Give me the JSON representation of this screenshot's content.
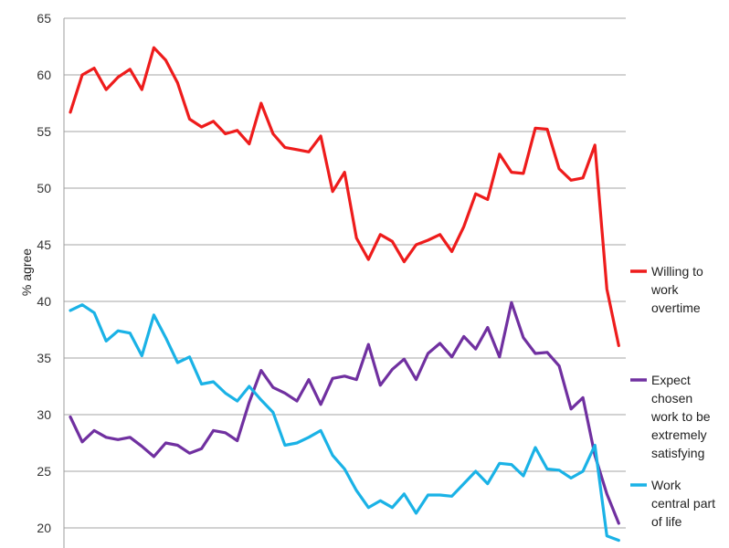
{
  "chart_data": {
    "type": "line",
    "title": "",
    "xlabel": "",
    "ylabel": "% agree",
    "ylim": [
      19,
      65
    ],
    "yticks": [
      20,
      25,
      30,
      35,
      40,
      45,
      50,
      55,
      60,
      65
    ],
    "grid": true,
    "legend_position": "right",
    "series": [
      {
        "name": "Willing to work overtime",
        "legend_lines": [
          "Willing to",
          "work",
          "overtime"
        ],
        "color": "#ee1c1c",
        "values": [
          56.7,
          60.0,
          60.6,
          58.7,
          59.8,
          60.5,
          58.7,
          62.4,
          61.3,
          59.3,
          56.1,
          55.4,
          55.9,
          54.8,
          55.1,
          53.9,
          57.5,
          54.8,
          53.6,
          53.4,
          53.2,
          54.6,
          49.7,
          51.4,
          45.6,
          43.7,
          45.9,
          45.3,
          43.5,
          45.0,
          45.4,
          45.9,
          44.4,
          46.6,
          49.5,
          49.0,
          53.0,
          51.4,
          51.3,
          55.3,
          55.2,
          51.7,
          50.7,
          50.9,
          53.8,
          41.1,
          36.1
        ]
      },
      {
        "name": "Expect chosen work to be extremely satisfying",
        "legend_lines": [
          "Expect",
          "chosen",
          "work to be",
          "extremely",
          "satisfying"
        ],
        "color": "#7030a0",
        "values": [
          29.8,
          27.6,
          28.6,
          28.0,
          27.8,
          28.0,
          27.2,
          26.3,
          27.5,
          27.3,
          26.6,
          27.0,
          28.6,
          28.4,
          27.7,
          31.1,
          33.9,
          32.4,
          31.9,
          31.2,
          33.1,
          30.9,
          33.2,
          33.4,
          33.1,
          36.2,
          32.6,
          34.0,
          34.9,
          33.1,
          35.4,
          36.3,
          35.1,
          36.9,
          35.8,
          37.7,
          35.1,
          39.9,
          36.8,
          35.4,
          35.5,
          34.3,
          30.5,
          31.5,
          26.4,
          23.0,
          20.4
        ]
      },
      {
        "name": "Work central part of life",
        "legend_lines": [
          "Work",
          "central part",
          "of life"
        ],
        "color": "#1ab2e6",
        "values": [
          39.2,
          39.7,
          39.0,
          36.5,
          37.4,
          37.2,
          35.2,
          38.8,
          36.8,
          34.6,
          35.1,
          32.7,
          32.9,
          31.9,
          31.2,
          32.5,
          31.3,
          30.2,
          27.3,
          27.5,
          28.0,
          28.6,
          26.4,
          25.2,
          23.3,
          21.8,
          22.4,
          21.8,
          23.0,
          21.3,
          22.9,
          22.9,
          22.8,
          23.9,
          25.0,
          23.9,
          25.7,
          25.6,
          24.6,
          27.1,
          25.2,
          25.1,
          24.4,
          25.0,
          27.3,
          19.3,
          18.9
        ]
      }
    ]
  }
}
